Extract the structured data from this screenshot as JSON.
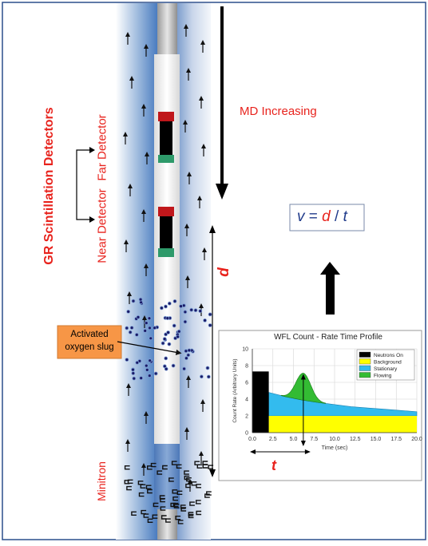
{
  "labels": {
    "md_increasing": "MD Increasing",
    "equation_v": "v",
    "equation_eq": " = ",
    "equation_d": "d",
    "equation_slash": " / ",
    "equation_t": "t",
    "far_detector": "Far Detector",
    "near_detector": "Near Detector",
    "gr_detectors": "GR Scintillation Detectors",
    "d_label": "d",
    "t_label": "t",
    "activated": "Activated",
    "oxygen_slug": "oxygen slug",
    "minitron": "Minitron"
  },
  "colors": {
    "red_text": "#e8231d",
    "blue_text": "#1f3a8a",
    "slug_box": "#f79646",
    "neutrons_on": "#000000",
    "background": "#ffff00",
    "stationary": "#33bbee",
    "flowing": "#33bb33"
  },
  "chart_data": {
    "type": "area",
    "title": "WFL Count - Rate Time Profile",
    "xlabel": "Time (sec)",
    "ylabel": "Count Rate (Arbitrary Units)",
    "xlim": [
      0,
      20
    ],
    "ylim": [
      0,
      10
    ],
    "xticks": [
      "0.0",
      "2.5",
      "5.0",
      "7.5",
      "10.0",
      "12.5",
      "15.0",
      "17.5",
      "20.0"
    ],
    "yticks": [
      "0",
      "2",
      "4",
      "6",
      "8",
      "10"
    ],
    "legend": [
      "Neutrons On",
      "Background",
      "Stationary",
      "Flowing"
    ],
    "legend_position": "top-right",
    "neutrons_on": {
      "x": [
        0,
        2
      ],
      "y": 7.3
    },
    "background_level": 2.0,
    "stationary": {
      "x": [
        2,
        4,
        6,
        8,
        10,
        12,
        14,
        16,
        18,
        20
      ],
      "y": [
        4.8,
        4.3,
        3.9,
        3.6,
        3.35,
        3.1,
        2.95,
        2.8,
        2.65,
        2.5
      ]
    },
    "flowing_peak": {
      "x": 6.2,
      "y": 7.1,
      "width": 0.9
    }
  }
}
